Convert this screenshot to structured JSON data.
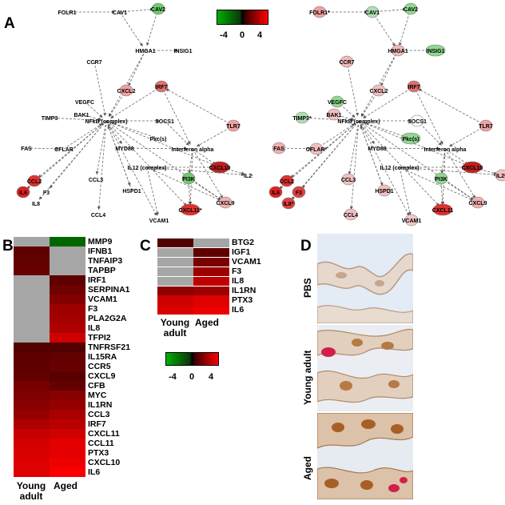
{
  "panels": {
    "A": "A",
    "B": "B",
    "C": "C",
    "D": "D"
  },
  "legend": {
    "min": "-4",
    "mid": "0",
    "max": "4"
  },
  "network_nodes": [
    "FOLR1",
    "CAV1",
    "CAV2",
    "HMGA1",
    "INSIG1",
    "CCR7",
    "VEGFC",
    "CXCL2",
    "IRF7",
    "BAK1",
    "TIMP3",
    "NFkB (complex)",
    "SOCS1",
    "TLR7",
    "FAS",
    "CFLAR",
    "MYD88",
    "Pkc(s)",
    "Interferon alpha",
    "IL12 (complex)",
    "CXCL10",
    "IL29",
    "CCL2",
    "CCL3",
    "PI3K",
    "IL6",
    "F3",
    "HSPD1",
    "CXCL9",
    "IL8",
    "CCL4",
    "VCAM1",
    "CXCL11"
  ],
  "network_right_labels": {
    "FOLR1": "FOLR1*",
    "TIMP3": "TIMP3*",
    "CFLAR": "CFLAR*",
    "IL8": "IL8*"
  },
  "network_left_labels": {
    "CXCL11": "CXCL11*"
  },
  "chart_data": [
    {
      "type": "heatmap",
      "panel": "B",
      "columns": [
        "Young adult",
        "Aged"
      ],
      "rows": [
        "MMP9",
        "IFNB1",
        "TNFAIP3",
        "TAPBP",
        "IRF1",
        "SERPINA1",
        "VCAM1",
        "F3",
        "PLA2G2A",
        "IL8",
        "TFPI2",
        "TNFRSF21",
        "IL15RA",
        "CCR5",
        "CXCL9",
        "CFB",
        "MYC",
        "IL1RN",
        "CCL3",
        "IRF7",
        "CXCL11",
        "CCL11",
        "PTX3",
        "CXCL10",
        "IL6"
      ],
      "values": [
        [
          null,
          -2.5
        ],
        [
          1.0,
          null
        ],
        [
          1.1,
          null
        ],
        [
          1.2,
          null
        ],
        [
          null,
          1.0
        ],
        [
          null,
          1.3
        ],
        [
          null,
          1.7
        ],
        [
          null,
          2.2
        ],
        [
          null,
          2.3
        ],
        [
          null,
          2.5
        ],
        [
          null,
          3.1
        ],
        [
          0.8,
          0.8
        ],
        [
          1.0,
          1.1
        ],
        [
          1.0,
          1.2
        ],
        [
          1.1,
          0.9
        ],
        [
          1.5,
          1.1
        ],
        [
          1.6,
          1.8
        ],
        [
          1.8,
          2.0
        ],
        [
          2.0,
          2.4
        ],
        [
          2.5,
          2.7
        ],
        [
          2.9,
          3.1
        ],
        [
          3.2,
          3.5
        ],
        [
          3.3,
          3.5
        ],
        [
          3.4,
          3.7
        ],
        [
          3.4,
          3.9
        ]
      ],
      "range": [
        -4,
        4
      ]
    },
    {
      "type": "heatmap",
      "panel": "C",
      "columns": [
        "Young adult",
        "Aged"
      ],
      "rows": [
        "BTG2",
        "IGF1",
        "VCAM1",
        "F3",
        "IL8",
        "IL1RN",
        "PTX3",
        "IL6"
      ],
      "values": [
        [
          0.8,
          null
        ],
        [
          null,
          1.0
        ],
        [
          null,
          1.5
        ],
        [
          null,
          2.2
        ],
        [
          null,
          2.8
        ],
        [
          1.9,
          2.1
        ],
        [
          3.1,
          3.4
        ],
        [
          3.3,
          3.6
        ]
      ],
      "range": [
        -4,
        4
      ]
    }
  ],
  "micrographs": [
    "PBS",
    "Young adult",
    "Aged"
  ]
}
